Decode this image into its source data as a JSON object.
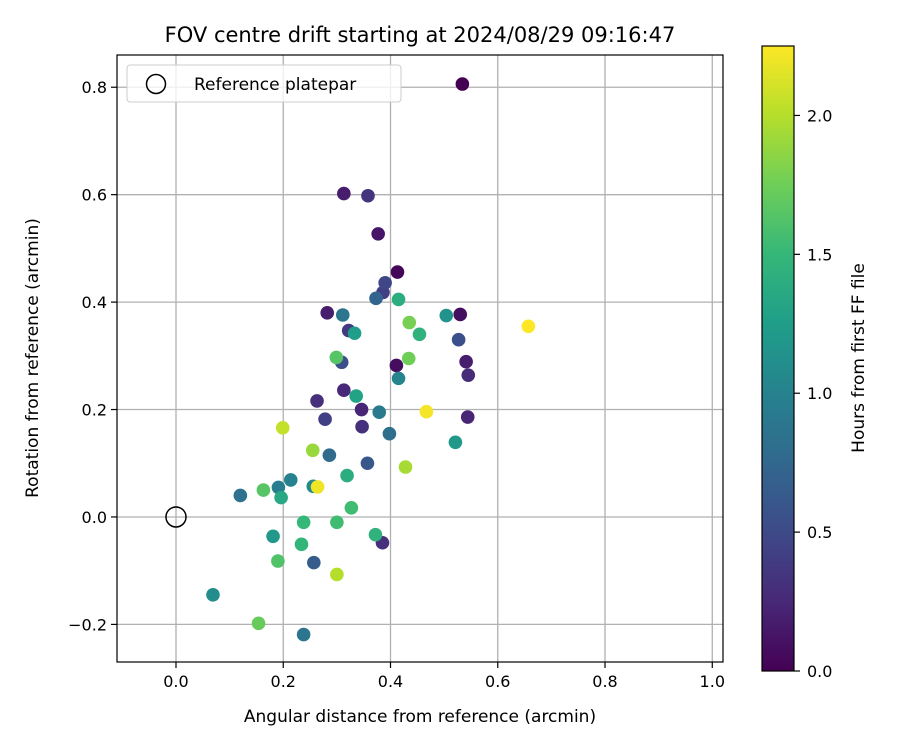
{
  "chart_data": {
    "type": "scatter",
    "title": "FOV centre drift starting at 2024/08/29 09:16:47",
    "xlabel": "Angular distance from reference (arcmin)",
    "ylabel": "Rotation from reference (arcmin)",
    "xlim": [
      -0.11,
      1.02
    ],
    "ylim": [
      -0.27,
      0.86
    ],
    "xticks": [
      0.0,
      0.2,
      0.4,
      0.6,
      0.8,
      1.0
    ],
    "xtick_labels": [
      "0.0",
      "0.2",
      "0.4",
      "0.6",
      "0.8",
      "1.0"
    ],
    "yticks": [
      -0.2,
      0.0,
      0.2,
      0.4,
      0.6,
      0.8
    ],
    "ytick_labels": [
      "−0.2",
      "0.0",
      "0.2",
      "0.4",
      "0.6",
      "0.8"
    ],
    "grid": true,
    "legend": {
      "placement": "upper-left",
      "entries": [
        "Reference platepar"
      ]
    },
    "reference_point": {
      "x": 0.0,
      "y": 0.0,
      "marker": "open-circle"
    },
    "colorbar": {
      "label": "Hours from first FF file",
      "range": [
        0.0,
        2.25
      ],
      "ticks": [
        0.0,
        0.5,
        1.0,
        1.5,
        2.0
      ],
      "tick_labels": [
        "0.0",
        "0.5",
        "1.0",
        "1.5",
        "2.0"
      ],
      "colormap": [
        "#440154",
        "#482878",
        "#3e4a89",
        "#31688e",
        "#26828e",
        "#1f9e89",
        "#35b779",
        "#6ece58",
        "#b5de2b",
        "#fde725"
      ]
    },
    "points": [
      {
        "x": 0.534,
        "y": 0.806,
        "c": 0.0
      },
      {
        "x": 0.413,
        "y": 0.456,
        "c": 0.03
      },
      {
        "x": 0.53,
        "y": 0.377,
        "c": 0.08
      },
      {
        "x": 0.411,
        "y": 0.282,
        "c": 0.08
      },
      {
        "x": 0.377,
        "y": 0.527,
        "c": 0.13
      },
      {
        "x": 0.313,
        "y": 0.602,
        "c": 0.18
      },
      {
        "x": 0.282,
        "y": 0.38,
        "c": 0.18
      },
      {
        "x": 0.541,
        "y": 0.289,
        "c": 0.18
      },
      {
        "x": 0.346,
        "y": 0.2,
        "c": 0.23
      },
      {
        "x": 0.544,
        "y": 0.186,
        "c": 0.23
      },
      {
        "x": 0.313,
        "y": 0.236,
        "c": 0.25
      },
      {
        "x": 0.545,
        "y": 0.264,
        "c": 0.28
      },
      {
        "x": 0.263,
        "y": 0.216,
        "c": 0.3
      },
      {
        "x": 0.347,
        "y": 0.168,
        "c": 0.3
      },
      {
        "x": 0.385,
        "y": -0.048,
        "c": 0.3
      },
      {
        "x": 0.358,
        "y": 0.598,
        "c": 0.33
      },
      {
        "x": 0.322,
        "y": 0.347,
        "c": 0.38
      },
      {
        "x": 0.278,
        "y": 0.182,
        "c": 0.42
      },
      {
        "x": 0.386,
        "y": 0.418,
        "c": 0.43
      },
      {
        "x": 0.39,
        "y": 0.436,
        "c": 0.48
      },
      {
        "x": 0.527,
        "y": 0.33,
        "c": 0.55
      },
      {
        "x": 0.309,
        "y": 0.288,
        "c": 0.55
      },
      {
        "x": 0.357,
        "y": 0.1,
        "c": 0.62
      },
      {
        "x": 0.257,
        "y": -0.085,
        "c": 0.65
      },
      {
        "x": 0.373,
        "y": 0.407,
        "c": 0.72
      },
      {
        "x": 0.286,
        "y": 0.115,
        "c": 0.78
      },
      {
        "x": 0.398,
        "y": 0.155,
        "c": 0.82
      },
      {
        "x": 0.12,
        "y": 0.04,
        "c": 0.85
      },
      {
        "x": 0.311,
        "y": 0.376,
        "c": 0.88
      },
      {
        "x": 0.238,
        "y": -0.219,
        "c": 0.88
      },
      {
        "x": 0.379,
        "y": 0.195,
        "c": 0.92
      },
      {
        "x": 0.191,
        "y": 0.055,
        "c": 0.95
      },
      {
        "x": 0.214,
        "y": 0.069,
        "c": 1.0
      },
      {
        "x": 0.415,
        "y": 0.258,
        "c": 1.02
      },
      {
        "x": 0.256,
        "y": 0.057,
        "c": 1.05
      },
      {
        "x": 0.069,
        "y": -0.145,
        "c": 1.1
      },
      {
        "x": 0.504,
        "y": 0.375,
        "c": 1.15
      },
      {
        "x": 0.181,
        "y": -0.036,
        "c": 1.2
      },
      {
        "x": 0.521,
        "y": 0.139,
        "c": 1.2
      },
      {
        "x": 0.333,
        "y": 0.342,
        "c": 1.25
      },
      {
        "x": 0.336,
        "y": 0.225,
        "c": 1.3
      },
      {
        "x": 0.196,
        "y": 0.036,
        "c": 1.35
      },
      {
        "x": 0.319,
        "y": 0.077,
        "c": 1.4
      },
      {
        "x": 0.415,
        "y": 0.405,
        "c": 1.4
      },
      {
        "x": 0.454,
        "y": 0.34,
        "c": 1.45
      },
      {
        "x": 0.372,
        "y": -0.033,
        "c": 1.45
      },
      {
        "x": 0.234,
        "y": -0.051,
        "c": 1.48
      },
      {
        "x": 0.238,
        "y": -0.01,
        "c": 1.5
      },
      {
        "x": 0.3,
        "y": -0.01,
        "c": 1.55
      },
      {
        "x": 0.327,
        "y": 0.017,
        "c": 1.55
      },
      {
        "x": 0.19,
        "y": -0.082,
        "c": 1.62
      },
      {
        "x": 0.299,
        "y": 0.297,
        "c": 1.65
      },
      {
        "x": 0.163,
        "y": 0.05,
        "c": 1.65
      },
      {
        "x": 0.154,
        "y": -0.198,
        "c": 1.72
      },
      {
        "x": 0.434,
        "y": 0.295,
        "c": 1.75
      },
      {
        "x": 0.435,
        "y": 0.362,
        "c": 1.78
      },
      {
        "x": 0.255,
        "y": 0.124,
        "c": 1.9
      },
      {
        "x": 0.428,
        "y": 0.093,
        "c": 1.95
      },
      {
        "x": 0.3,
        "y": -0.107,
        "c": 2.0
      },
      {
        "x": 0.199,
        "y": 0.166,
        "c": 2.05
      },
      {
        "x": 0.264,
        "y": 0.056,
        "c": 2.2
      },
      {
        "x": 0.467,
        "y": 0.196,
        "c": 2.22
      },
      {
        "x": 0.657,
        "y": 0.355,
        "c": 2.25
      }
    ]
  }
}
